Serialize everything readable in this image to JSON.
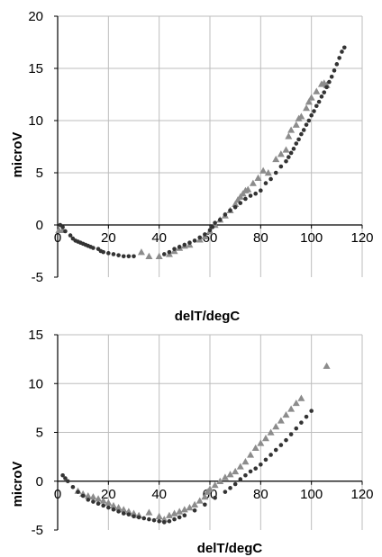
{
  "chart_data": [
    {
      "type": "scatter",
      "xlabel": "delT/degC",
      "ylabel": "microV",
      "xlim": [
        0,
        120
      ],
      "ylim": [
        -5,
        20
      ],
      "xticks": [
        0,
        20,
        40,
        60,
        80,
        100,
        120
      ],
      "yticks": [
        -5,
        0,
        5,
        10,
        15,
        20
      ],
      "grid": true,
      "legend": "none",
      "series": [
        {
          "marker": "triangle",
          "color": "#8c8c8c",
          "points": [
            [
              0.5,
              -0.5
            ],
            [
              2,
              -0.5
            ],
            [
              33,
              -2.6
            ],
            [
              36,
              -3.0
            ],
            [
              40,
              -3.0
            ],
            [
              44,
              -2.8
            ],
            [
              46,
              -2.5
            ],
            [
              48,
              -2.2
            ],
            [
              50,
              -2.0
            ],
            [
              52,
              -1.9
            ],
            [
              56,
              -1.4
            ],
            [
              58,
              -1.1
            ],
            [
              60,
              -0.6
            ],
            [
              62,
              0.0
            ],
            [
              64,
              0.5
            ],
            [
              66,
              0.9
            ],
            [
              68,
              1.4
            ],
            [
              70,
              2.0
            ],
            [
              71,
              2.4
            ],
            [
              72,
              2.7
            ],
            [
              73,
              3.0
            ],
            [
              74,
              3.3
            ],
            [
              75,
              3.4
            ],
            [
              77,
              4.0
            ],
            [
              79,
              4.5
            ],
            [
              81,
              5.2
            ],
            [
              83,
              5.0
            ],
            [
              86,
              6.3
            ],
            [
              88,
              6.8
            ],
            [
              90,
              7.2
            ],
            [
              91,
              8.5
            ],
            [
              92,
              9.1
            ],
            [
              94,
              9.6
            ],
            [
              95,
              10.2
            ],
            [
              96,
              10.4
            ],
            [
              98,
              11.2
            ],
            [
              99,
              11.8
            ],
            [
              100,
              12.2
            ],
            [
              102,
              12.8
            ],
            [
              104,
              13.5
            ],
            [
              105,
              13.6
            ],
            [
              106,
              13.4
            ]
          ]
        },
        {
          "marker": "circle",
          "color": "#333333",
          "points": [
            [
              1,
              0
            ],
            [
              2,
              -0.2
            ],
            [
              3,
              -0.6
            ],
            [
              5,
              -1.0
            ],
            [
              6,
              -1.3
            ],
            [
              7,
              -1.5
            ],
            [
              8,
              -1.6
            ],
            [
              9,
              -1.7
            ],
            [
              10,
              -1.8
            ],
            [
              11,
              -1.9
            ],
            [
              12,
              -2.0
            ],
            [
              13,
              -2.1
            ],
            [
              14,
              -2.2
            ],
            [
              16,
              -2.3
            ],
            [
              17,
              -2.5
            ],
            [
              18,
              -2.6
            ],
            [
              20,
              -2.7
            ],
            [
              22,
              -2.8
            ],
            [
              24,
              -2.9
            ],
            [
              26,
              -3.0
            ],
            [
              28,
              -3.0
            ],
            [
              30,
              -3.0
            ],
            [
              42,
              -2.8
            ],
            [
              44,
              -2.6
            ],
            [
              46,
              -2.3
            ],
            [
              48,
              -2.1
            ],
            [
              50,
              -1.9
            ],
            [
              52,
              -1.7
            ],
            [
              54,
              -1.5
            ],
            [
              56,
              -1.2
            ],
            [
              58,
              -0.9
            ],
            [
              60,
              -0.5
            ],
            [
              61,
              -0.2
            ],
            [
              62,
              0.2
            ],
            [
              64,
              0.5
            ],
            [
              66,
              1.0
            ],
            [
              68,
              1.4
            ],
            [
              70,
              1.7
            ],
            [
              72,
              2.1
            ],
            [
              74,
              2.5
            ],
            [
              76,
              2.8
            ],
            [
              78,
              3.0
            ],
            [
              80,
              3.3
            ],
            [
              82,
              4.0
            ],
            [
              84,
              4.4
            ],
            [
              86,
              5.0
            ],
            [
              88,
              5.6
            ],
            [
              90,
              6.1
            ],
            [
              91,
              6.5
            ],
            [
              92,
              6.9
            ],
            [
              93,
              7.3
            ],
            [
              94,
              7.8
            ],
            [
              95,
              8.2
            ],
            [
              96,
              8.7
            ],
            [
              97,
              9.1
            ],
            [
              98,
              9.6
            ],
            [
              99,
              10.0
            ],
            [
              100,
              10.5
            ],
            [
              101,
              10.9
            ],
            [
              102,
              11.4
            ],
            [
              103,
              11.8
            ],
            [
              104,
              12.3
            ],
            [
              105,
              12.7
            ],
            [
              106,
              13.2
            ],
            [
              107,
              13.7
            ],
            [
              108,
              14.2
            ],
            [
              109,
              14.8
            ],
            [
              110,
              15.4
            ],
            [
              111,
              16.0
            ],
            [
              112,
              16.6
            ],
            [
              113,
              17.0
            ]
          ]
        }
      ]
    },
    {
      "type": "scatter",
      "xlabel": "delT/degC",
      "ylabel": "microV",
      "xlim": [
        0,
        120
      ],
      "ylim": [
        -5,
        15
      ],
      "xticks": [
        0,
        20,
        40,
        60,
        80,
        100,
        120
      ],
      "yticks": [
        -5,
        0,
        5,
        10,
        15
      ],
      "grid": true,
      "legend": "none",
      "series": [
        {
          "marker": "triangle",
          "color": "#8c8c8c",
          "points": [
            [
              8,
              -1.0
            ],
            [
              10,
              -1.3
            ],
            [
              12,
              -1.5
            ],
            [
              14,
              -1.6
            ],
            [
              16,
              -1.8
            ],
            [
              18,
              -2.0
            ],
            [
              20,
              -2.2
            ],
            [
              22,
              -2.5
            ],
            [
              24,
              -2.7
            ],
            [
              26,
              -2.9
            ],
            [
              28,
              -3.1
            ],
            [
              30,
              -3.3
            ],
            [
              32,
              -3.5
            ],
            [
              36,
              -3.2
            ],
            [
              40,
              -3.6
            ],
            [
              42,
              -3.9
            ],
            [
              44,
              -3.5
            ],
            [
              46,
              -3.3
            ],
            [
              48,
              -3.1
            ],
            [
              50,
              -2.9
            ],
            [
              52,
              -2.7
            ],
            [
              54,
              -2.4
            ],
            [
              56,
              -2.0
            ],
            [
              58,
              -1.6
            ],
            [
              59,
              -1.1
            ],
            [
              60,
              -0.8
            ],
            [
              62,
              -0.4
            ],
            [
              64,
              0.0
            ],
            [
              66,
              0.4
            ],
            [
              68,
              0.7
            ],
            [
              70,
              1.0
            ],
            [
              72,
              1.5
            ],
            [
              74,
              2.0
            ],
            [
              76,
              2.7
            ],
            [
              78,
              3.4
            ],
            [
              80,
              3.9
            ],
            [
              82,
              4.4
            ],
            [
              84,
              5.0
            ],
            [
              86,
              5.6
            ],
            [
              88,
              6.2
            ],
            [
              90,
              6.8
            ],
            [
              92,
              7.4
            ],
            [
              94,
              8.0
            ],
            [
              96,
              8.5
            ],
            [
              106,
              11.8
            ]
          ]
        },
        {
          "marker": "circle",
          "color": "#333333",
          "points": [
            [
              2,
              0.6
            ],
            [
              3,
              0.3
            ],
            [
              4,
              0.0
            ],
            [
              6,
              -0.6
            ],
            [
              8,
              -1.1
            ],
            [
              10,
              -1.5
            ],
            [
              12,
              -1.9
            ],
            [
              14,
              -2.1
            ],
            [
              16,
              -2.3
            ],
            [
              18,
              -2.5
            ],
            [
              20,
              -2.7
            ],
            [
              22,
              -2.9
            ],
            [
              24,
              -3.1
            ],
            [
              26,
              -3.3
            ],
            [
              28,
              -3.4
            ],
            [
              30,
              -3.6
            ],
            [
              32,
              -3.7
            ],
            [
              34,
              -3.8
            ],
            [
              36,
              -3.9
            ],
            [
              38,
              -4.0
            ],
            [
              40,
              -4.1
            ],
            [
              42,
              -4.2
            ],
            [
              44,
              -4.1
            ],
            [
              46,
              -3.9
            ],
            [
              48,
              -3.7
            ],
            [
              50,
              -3.5
            ],
            [
              54,
              -3.0
            ],
            [
              58,
              -2.4
            ],
            [
              62,
              -1.7
            ],
            [
              66,
              -1.1
            ],
            [
              68,
              -0.7
            ],
            [
              70,
              -0.3
            ],
            [
              72,
              0.2
            ],
            [
              74,
              0.6
            ],
            [
              76,
              1.0
            ],
            [
              78,
              1.3
            ],
            [
              80,
              1.7
            ],
            [
              82,
              2.2
            ],
            [
              84,
              2.7
            ],
            [
              86,
              3.2
            ],
            [
              88,
              3.7
            ],
            [
              90,
              4.2
            ],
            [
              92,
              4.8
            ],
            [
              94,
              5.4
            ],
            [
              96,
              6.0
            ],
            [
              98,
              6.6
            ],
            [
              100,
              7.2
            ]
          ]
        }
      ]
    }
  ]
}
